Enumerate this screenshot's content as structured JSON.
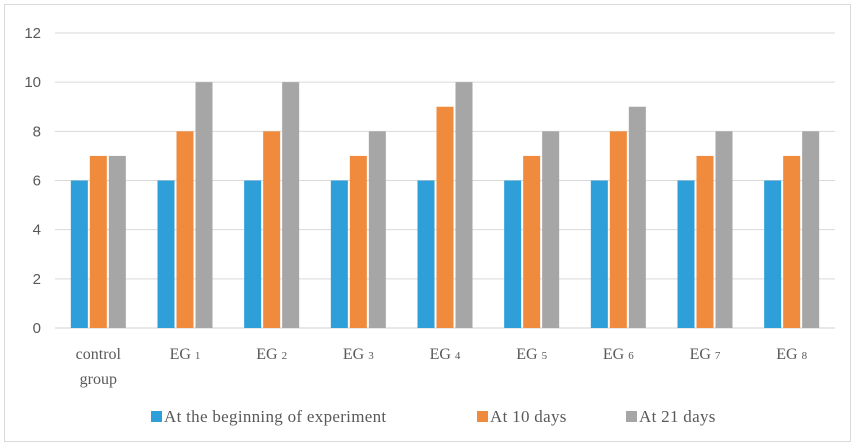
{
  "chart_data": {
    "type": "bar",
    "title": "",
    "xlabel": "",
    "ylabel": "",
    "ylim": [
      0,
      12
    ],
    "yticks": [
      0,
      2,
      4,
      6,
      8,
      10,
      12
    ],
    "grid": true,
    "legend_position": "bottom",
    "categories": [
      {
        "main": "control",
        "line2": "group",
        "sub": ""
      },
      {
        "main": "EG",
        "line2": "",
        "sub": "1"
      },
      {
        "main": "EG",
        "line2": "",
        "sub": "2"
      },
      {
        "main": "EG",
        "line2": "",
        "sub": "3"
      },
      {
        "main": "EG",
        "line2": "",
        "sub": "4"
      },
      {
        "main": "EG",
        "line2": "",
        "sub": "5"
      },
      {
        "main": "EG",
        "line2": "",
        "sub": "6"
      },
      {
        "main": "EG",
        "line2": "",
        "sub": "7"
      },
      {
        "main": "EG",
        "line2": "",
        "sub": "8"
      }
    ],
    "series": [
      {
        "name": "At the beginning of experiment",
        "color": "#2e9fd8",
        "values": [
          6,
          6,
          6,
          6,
          6,
          6,
          6,
          6,
          6
        ]
      },
      {
        "name": "At 10 days",
        "color": "#f08a3c",
        "values": [
          7,
          8,
          8,
          7,
          9,
          7,
          8,
          7,
          7
        ]
      },
      {
        "name": "At 21 days",
        "color": "#a6a6a6",
        "values": [
          7,
          10,
          10,
          8,
          10,
          8,
          9,
          8,
          8
        ]
      }
    ]
  }
}
